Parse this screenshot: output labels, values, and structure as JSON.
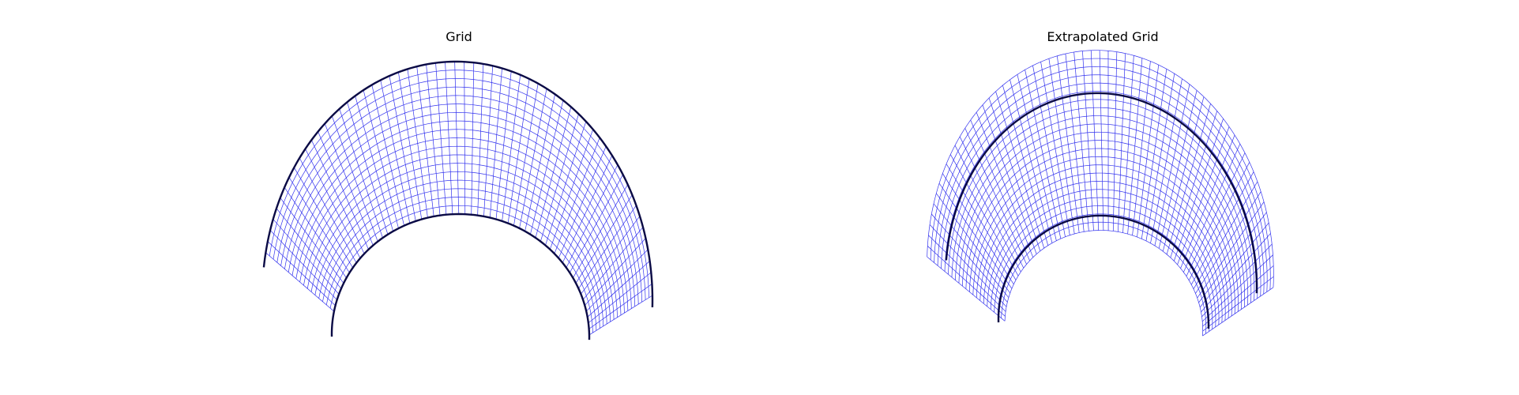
{
  "panels": [
    {
      "title": "Grid"
    },
    {
      "title": "Extrapolated Grid"
    }
  ],
  "colors": {
    "grid_line": "#3333ee",
    "boundary": "#0a0a45",
    "background": "#ffffff"
  }
}
